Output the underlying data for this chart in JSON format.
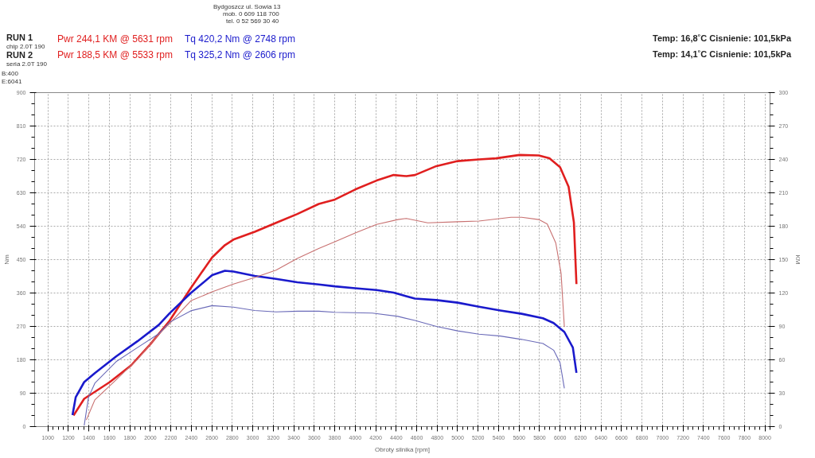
{
  "chart_data": {
    "type": "line",
    "xlabel": "Obroty silnika [rpm]",
    "ylabel": "Nm",
    "y2label": "KM",
    "xlim": [
      870,
      8050
    ],
    "xticks": [
      1000,
      1200,
      1400,
      1600,
      1800,
      2000,
      2200,
      2400,
      2600,
      2800,
      3000,
      3200,
      3400,
      3600,
      3800,
      4000,
      4200,
      4400,
      4600,
      4800,
      5000,
      5200,
      5400,
      5600,
      5800,
      6000,
      6200,
      6400,
      6600,
      6800,
      7000,
      7200,
      7400,
      7600,
      7800,
      8000
    ],
    "ylim": [
      0,
      900
    ],
    "yticks": [
      0,
      90,
      180,
      270,
      360,
      450,
      540,
      630,
      720,
      810,
      900
    ],
    "y2lim": [
      0,
      300
    ],
    "y2ticks": [
      0,
      30,
      60,
      90,
      120,
      150,
      180,
      210,
      240,
      270,
      300
    ],
    "grid": true,
    "line_style": "solid",
    "marker": "none",
    "annotations": [
      "Bydgoszcz ul. Sowia 13",
      "mob. 0 609 118 700",
      "tel. 0 52 569 30 40",
      "RUN 1",
      "chip  2.0T 190",
      "Pwr  244,1 KM @ 5631 rpm",
      "Tq 420,2 Nm @ 2748 rpm",
      "Temp: 16,8˚C Cisnienie: 101,5kPa",
      "RUN 2",
      "seria  2.0T 190",
      "Pwr  188,5 KM @ 5533 rpm",
      "Tq 325,2 Nm @ 2606 rpm",
      "Temp: 14,1˚C Cisnienie: 101,5kPa",
      "B:400",
      "E:6041"
    ],
    "series": [
      {
        "color": "#e01f1f",
        "axis": "y2",
        "x": [
          1250,
          1354,
          1604,
          1812,
          2000,
          2187,
          2395,
          2603,
          2728,
          2811,
          3019,
          3227,
          3435,
          3644,
          3802,
          4000,
          4208,
          4375,
          4500,
          4583,
          4792,
          5000,
          5208,
          5375,
          5604,
          5792,
          5896,
          6000,
          6083,
          6135,
          6160
        ],
        "values": [
          10,
          25,
          40,
          55,
          74,
          95,
          124.5,
          152,
          163,
          168,
          175,
          183,
          191,
          200,
          204,
          213,
          221,
          226,
          225,
          226,
          234,
          238.5,
          240,
          241,
          244,
          243.6,
          241,
          233,
          215.6,
          183.5,
          128
        ]
      },
      {
        "color": "#1a1acc",
        "x": [
          1240,
          1271,
          1354,
          1458,
          1666,
          1874,
          2082,
          2187,
          2395,
          2603,
          2728,
          2811,
          3019,
          3227,
          3435,
          3644,
          3802,
          4000,
          4208,
          4375,
          4583,
          4792,
          5000,
          5208,
          5417,
          5625,
          5833,
          5937,
          6042,
          6125,
          6160
        ],
        "values": [
          31,
          79,
          120,
          144,
          189,
          230,
          274,
          305,
          360,
          408,
          420,
          418,
          406,
          398,
          389,
          383,
          378,
          373,
          368,
          361,
          345,
          341,
          334,
          323,
          313,
          304,
          292,
          279,
          255,
          213,
          145
        ]
      },
      {
        "color": "#c87070",
        "axis": "y2",
        "x": [
          1375,
          1458,
          1666,
          1874,
          2082,
          2187,
          2395,
          2603,
          2811,
          3019,
          3227,
          3435,
          3644,
          3802,
          4000,
          4208,
          4417,
          4500,
          4708,
          5000,
          5208,
          5521,
          5625,
          5792,
          5875,
          5958,
          6010,
          6042
        ],
        "values": [
          6,
          24,
          42,
          60.5,
          83,
          92.5,
          113,
          121,
          128,
          134,
          140.5,
          151,
          160,
          166,
          174,
          181.6,
          186,
          187,
          183,
          184,
          184.6,
          188,
          188,
          186,
          182,
          165,
          137.6,
          89.4
        ]
      },
      {
        "color": "#6a6ab8",
        "x": [
          1354,
          1396,
          1458,
          1666,
          1874,
          2082,
          2187,
          2395,
          2603,
          2811,
          3019,
          3227,
          3435,
          3644,
          3802,
          4167,
          4417,
          4583,
          4792,
          5000,
          5208,
          5417,
          5625,
          5833,
          5937,
          6000,
          6042
        ],
        "values": [
          3,
          79,
          117,
          175,
          213,
          250,
          281,
          312,
          326,
          322,
          313,
          309,
          311,
          311,
          308,
          306,
          297,
          286,
          270,
          258,
          249,
          244,
          235,
          224,
          206,
          172,
          103
        ]
      }
    ]
  }
}
